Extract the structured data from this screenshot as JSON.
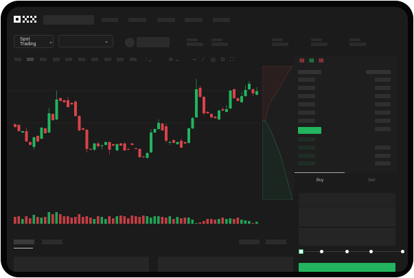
{
  "header": {
    "logo_text": "OKX"
  },
  "toolbar": {
    "market_select": "Spot Trading",
    "market_chevron": "chevron-down-icon",
    "pair_chevron": "chevron-down-icon"
  },
  "trade_panel": {
    "buy_tab": "Buy",
    "sell_tab": "Sell",
    "active_tab": "Buy",
    "leverage_slider_value": 0
  },
  "colors": {
    "up": "#22b45e",
    "down": "#d9434a",
    "background": "#1b1b1b",
    "placeholder": "#2b2b2b"
  },
  "chart_data": {
    "type": "candlestick",
    "title": "",
    "ohlc": [
      [
        119,
        120,
        114,
        115
      ],
      [
        118,
        119,
        108,
        109
      ],
      [
        107,
        109,
        106,
        109
      ],
      [
        109,
        114,
        93,
        94
      ],
      [
        93,
        94,
        88,
        89
      ],
      [
        86,
        101,
        82,
        100
      ],
      [
        102,
        103,
        93,
        94
      ],
      [
        98,
        115,
        97,
        114
      ],
      [
        113,
        114,
        105,
        106
      ],
      [
        107,
        143,
        106,
        135
      ],
      [
        134,
        135,
        124,
        125
      ],
      [
        126,
        168,
        125,
        155
      ],
      [
        157,
        158,
        152,
        153
      ],
      [
        154,
        155,
        150,
        151
      ],
      [
        154,
        159,
        143,
        144
      ],
      [
        150,
        151,
        147,
        148
      ],
      [
        152,
        154,
        130,
        131
      ],
      [
        131,
        132,
        109,
        110
      ],
      [
        113,
        114,
        110,
        111
      ],
      [
        111,
        112,
        78,
        83
      ],
      [
        83,
        84,
        81,
        82
      ],
      [
        82,
        92,
        80,
        91
      ],
      [
        91,
        94,
        85,
        87
      ],
      [
        87,
        90,
        82,
        88
      ],
      [
        89,
        94,
        88,
        93
      ],
      [
        93,
        94,
        75,
        82
      ],
      [
        90,
        91,
        87,
        88
      ],
      [
        81,
        91,
        80,
        90
      ],
      [
        91,
        92,
        87,
        88
      ],
      [
        91,
        93,
        80,
        81
      ],
      [
        83,
        84,
        81,
        82
      ],
      [
        91,
        92,
        88,
        89
      ],
      [
        84,
        85,
        82,
        83
      ],
      [
        83,
        84,
        70,
        71
      ],
      [
        72,
        73,
        70,
        71
      ],
      [
        70,
        78,
        69,
        77
      ],
      [
        78,
        112,
        77,
        107
      ],
      [
        107,
        113,
        106,
        112
      ],
      [
        112,
        126,
        111,
        121
      ],
      [
        120,
        121,
        109,
        110
      ],
      [
        116,
        120,
        92,
        95
      ],
      [
        92,
        95,
        89,
        93
      ],
      [
        96,
        97,
        91,
        92
      ],
      [
        90,
        94,
        89,
        93
      ],
      [
        95,
        98,
        84,
        85
      ],
      [
        93,
        94,
        90,
        91
      ],
      [
        92,
        114,
        90,
        113
      ],
      [
        113,
        130,
        112,
        128
      ],
      [
        129,
        185,
        128,
        170
      ],
      [
        172,
        175,
        157,
        159
      ],
      [
        159,
        160,
        132,
        135
      ],
      [
        137,
        138,
        134,
        135
      ],
      [
        134,
        135,
        128,
        129
      ],
      [
        130,
        131,
        127,
        128
      ],
      [
        126,
        140,
        125,
        139
      ],
      [
        141,
        144,
        138,
        139
      ],
      [
        137,
        147,
        136,
        141
      ],
      [
        142,
        169,
        141,
        168
      ],
      [
        170,
        171,
        156,
        157
      ],
      [
        157,
        158,
        152,
        153
      ],
      [
        151,
        166,
        150,
        160
      ],
      [
        160,
        176,
        159,
        169
      ],
      [
        170,
        182,
        169,
        178
      ],
      [
        170,
        171,
        160,
        164
      ],
      [
        162,
        173,
        161,
        167
      ]
    ],
    "volume": [
      10,
      11,
      7,
      11,
      8,
      13,
      10,
      9,
      10,
      17,
      14,
      17,
      14,
      11,
      11,
      9,
      10,
      14,
      10,
      11,
      9,
      7,
      11,
      10,
      7,
      11,
      8,
      11,
      12,
      11,
      8,
      12,
      11,
      10,
      12,
      11,
      9,
      11,
      11,
      10,
      9,
      11,
      7,
      10,
      8,
      9,
      9,
      6,
      1,
      2,
      4,
      7,
      7,
      6,
      7,
      9,
      7,
      8,
      7,
      9,
      6,
      5,
      4,
      1,
      3
    ],
    "depth": {
      "asks": [
        0.1,
        0.15,
        0.2,
        0.3,
        0.45,
        0.6,
        0.72,
        0.85,
        1.0
      ],
      "bids": [
        0.1,
        0.3,
        0.45,
        0.6,
        0.7,
        0.8,
        0.9,
        1.0
      ]
    }
  }
}
